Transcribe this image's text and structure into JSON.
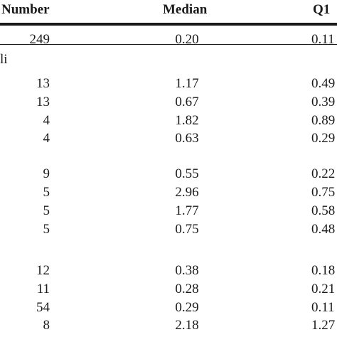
{
  "header": {
    "number": "Number",
    "median": "Median",
    "q1": "Q1"
  },
  "group_label": "li",
  "rows": [
    {
      "number": "249",
      "median": "0.20",
      "q1": "0.11"
    },
    {
      "number": "13",
      "median": "1.17",
      "q1": "0.49"
    },
    {
      "number": "13",
      "median": "0.67",
      "q1": "0.39"
    },
    {
      "number": "4",
      "median": "1.82",
      "q1": "0.89"
    },
    {
      "number": "4",
      "median": "0.63",
      "q1": "0.29"
    },
    {
      "number": "9",
      "median": "0.55",
      "q1": "0.22"
    },
    {
      "number": "5",
      "median": "2.96",
      "q1": "0.75"
    },
    {
      "number": "5",
      "median": "1.77",
      "q1": "0.58"
    },
    {
      "number": "5",
      "median": "0.75",
      "q1": "0.48"
    },
    {
      "number": "12",
      "median": "0.38",
      "q1": "0.18"
    },
    {
      "number": "11",
      "median": "0.28",
      "q1": "0.21"
    },
    {
      "number": "54",
      "median": "0.29",
      "q1": "0.11"
    },
    {
      "number": "8",
      "median": "2.18",
      "q1": "1.27"
    }
  ]
}
